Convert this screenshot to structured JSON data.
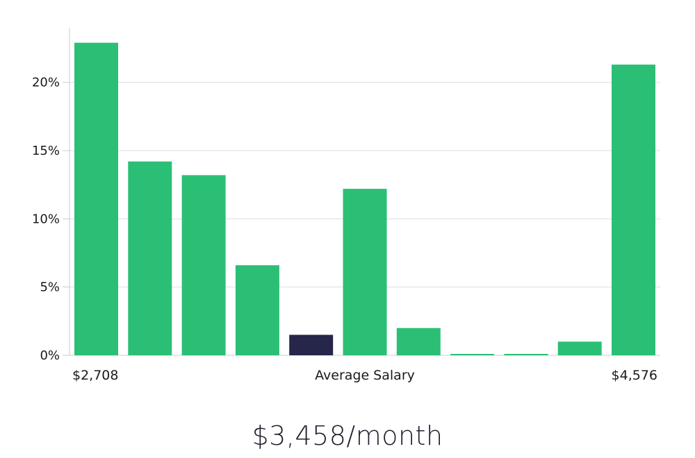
{
  "chart_data": {
    "type": "bar",
    "values": [
      22.9,
      14.2,
      13.2,
      6.6,
      1.5,
      12.2,
      2.0,
      0.0,
      0.0,
      1.0,
      21.3
    ],
    "highlight_index": 4,
    "ylim": [
      0,
      24
    ],
    "yticks": [
      0,
      5,
      10,
      15,
      20
    ],
    "ytick_labels": [
      "0%",
      "5%",
      "10%",
      "15%",
      "20%"
    ],
    "grid": true,
    "x_start_label": "$2,708",
    "x_center_label": "Average Salary",
    "x_end_label": "$4,576",
    "bar_color": "#2bbf76",
    "highlight_color": "#26254a",
    "grid_color": "#dddddd",
    "axis_color": "#cccccc"
  },
  "summary": {
    "salary": "$3,458/month"
  }
}
